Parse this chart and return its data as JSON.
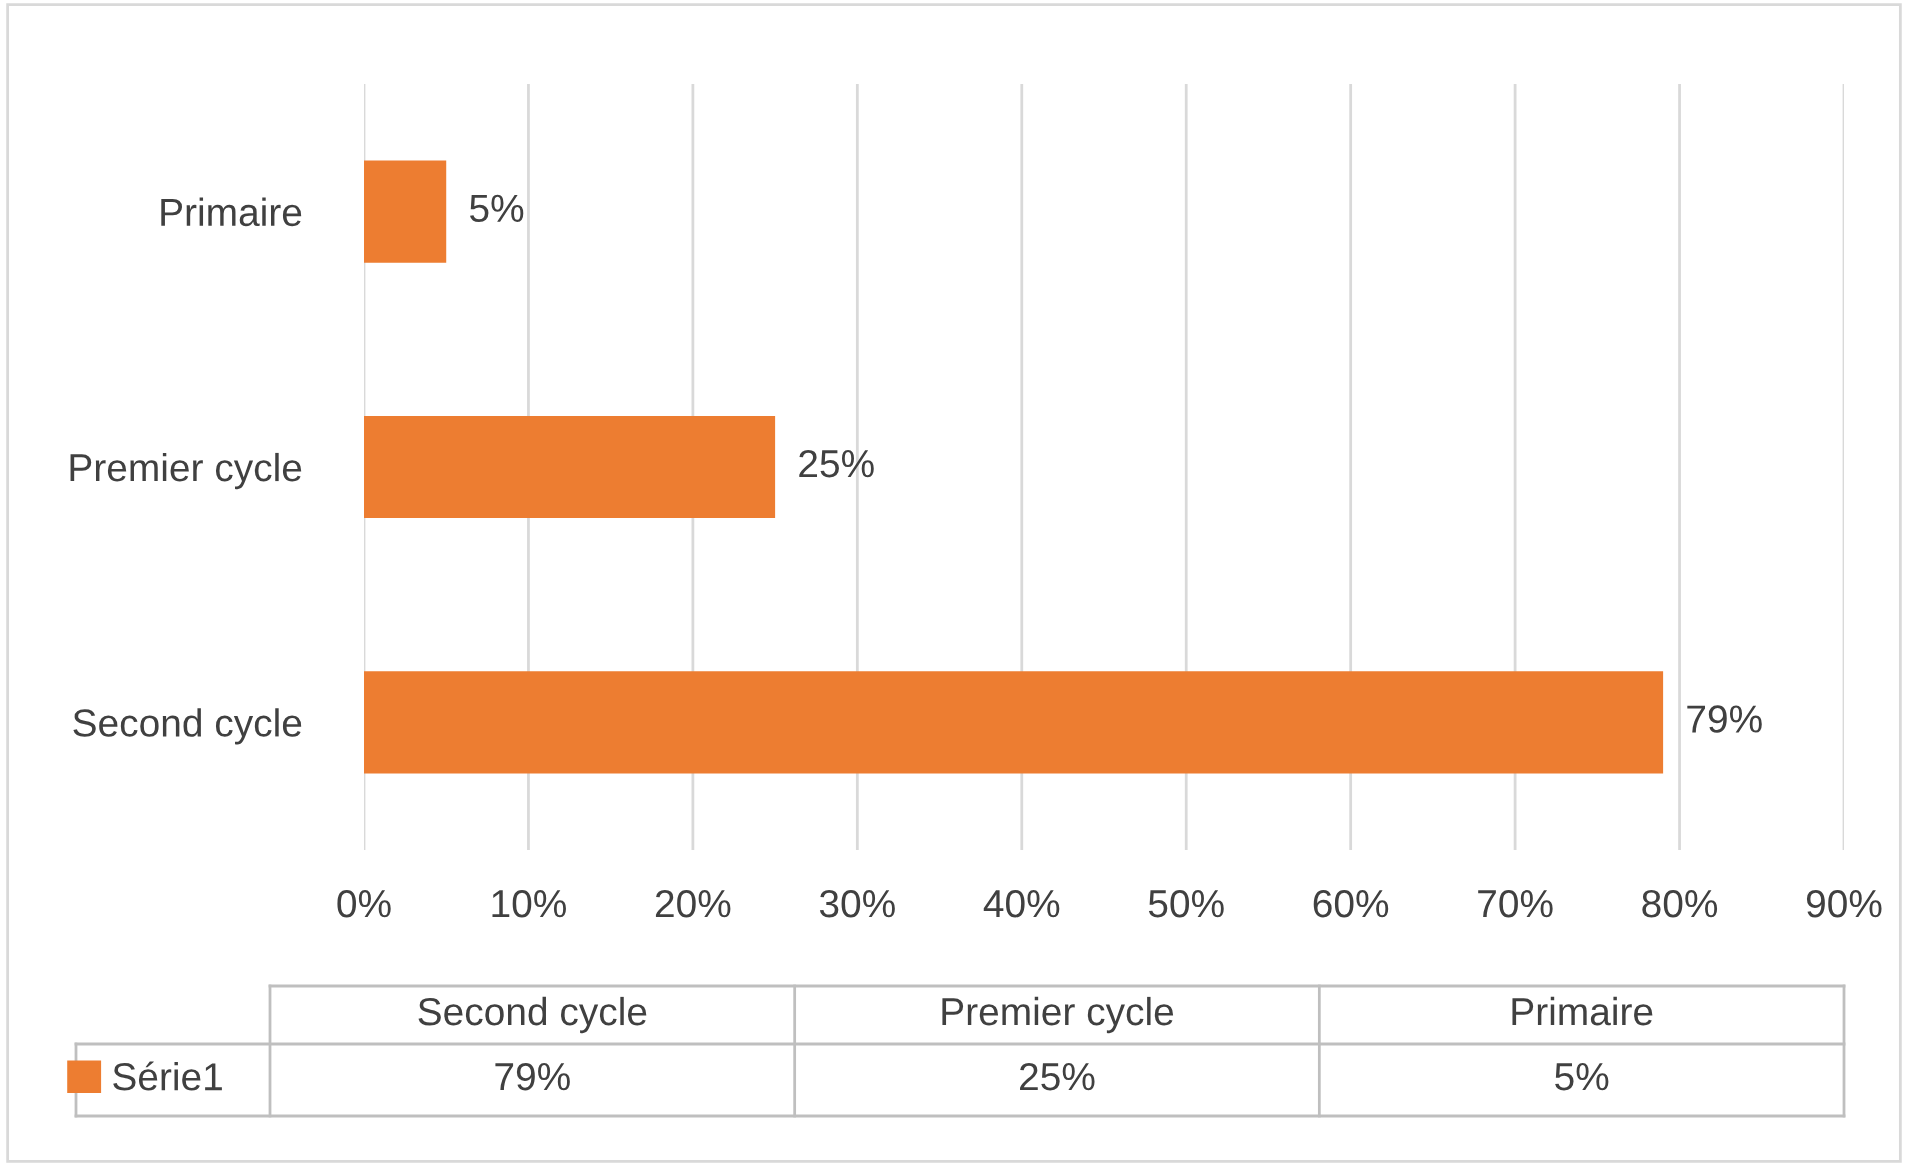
{
  "chart_data": {
    "type": "bar",
    "orientation": "horizontal",
    "categories": [
      "Primaire",
      "Premier cycle",
      "Second cycle"
    ],
    "series": [
      {
        "name": "Série1",
        "color": "#ed7d31",
        "values": [
          5,
          25,
          79
        ],
        "value_labels": [
          "5%",
          "25%",
          "79%"
        ]
      }
    ],
    "xlim": [
      0,
      90
    ],
    "xticks": [
      {
        "value": 0,
        "label": "0%"
      },
      {
        "value": 10,
        "label": "10%"
      },
      {
        "value": 20,
        "label": "20%"
      },
      {
        "value": 30,
        "label": "30%"
      },
      {
        "value": 40,
        "label": "40%"
      },
      {
        "value": 50,
        "label": "50%"
      },
      {
        "value": 60,
        "label": "60%"
      },
      {
        "value": 70,
        "label": "70%"
      },
      {
        "value": 80,
        "label": "80%"
      },
      {
        "value": 90,
        "label": "90%"
      }
    ],
    "grid": "x",
    "legend": "bottom"
  }
}
